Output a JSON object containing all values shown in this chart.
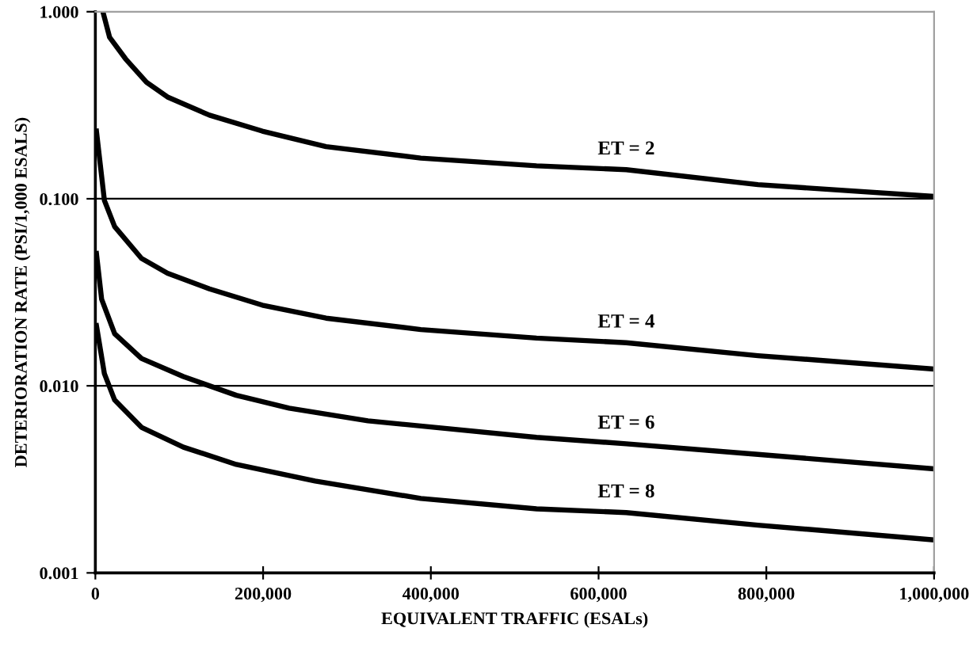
{
  "chart_data": {
    "type": "line",
    "xlabel": "EQUIVALENT TRAFFIC (ESALs)",
    "ylabel": "DETERIORATION RATE (PSI/1,000 ESALS)",
    "log": "y",
    "grid": "y",
    "legend": false,
    "marker": "none",
    "line_style": "solid",
    "xlim": [
      0,
      1000000
    ],
    "xticks": [
      {
        "value": 0,
        "label": "0"
      },
      {
        "value": 200000,
        "label": "200,000"
      },
      {
        "value": 400000,
        "label": "400,000"
      },
      {
        "value": 600000,
        "label": "600,000"
      },
      {
        "value": 800000,
        "label": "800,000"
      },
      {
        "value": 1000000,
        "label": "1,000,000"
      }
    ],
    "ylim": [
      0.001,
      1
    ],
    "yticks": [
      {
        "value": 0.001,
        "label": "0.001"
      },
      {
        "value": 0.01,
        "label": "0.010"
      },
      {
        "value": 0.1,
        "label": "0.100"
      },
      {
        "value": 1,
        "label": "1.000"
      }
    ],
    "series": [
      {
        "name": "ET = 2",
        "color": "#000000",
        "x": [
          9000,
          17000,
          36000,
          61000,
          86000,
          136000,
          199000,
          275000,
          388000,
          526000,
          633000,
          790000,
          1000000
        ],
        "values": [
          1.0,
          0.73,
          0.56,
          0.42,
          0.35,
          0.28,
          0.23,
          0.19,
          0.165,
          0.15,
          0.143,
          0.119,
          0.103
        ]
      },
      {
        "name": "ET = 4",
        "color": "#000000",
        "x": [
          1300,
          10800,
          23000,
          55000,
          86000,
          136000,
          199000,
          275000,
          388000,
          526000,
          633000,
          790000,
          1000000
        ],
        "values": [
          0.23,
          0.098,
          0.071,
          0.048,
          0.04,
          0.033,
          0.027,
          0.023,
          0.02,
          0.018,
          0.017,
          0.0145,
          0.0123
        ]
      },
      {
        "name": "ET = 6",
        "color": "#000000",
        "x": [
          1300,
          7500,
          23000,
          55000,
          105000,
          168000,
          231000,
          325000,
          526000,
          633000,
          790000,
          1000000
        ],
        "values": [
          0.051,
          0.029,
          0.019,
          0.014,
          0.0112,
          0.0089,
          0.0076,
          0.0065,
          0.0053,
          0.0049,
          0.0043,
          0.0036
        ]
      },
      {
        "name": "ET = 8",
        "color": "#000000",
        "x": [
          1300,
          10800,
          23000,
          55000,
          105000,
          168000,
          262000,
          388000,
          526000,
          633000,
          790000,
          1000000
        ],
        "values": [
          0.021,
          0.0116,
          0.0084,
          0.006,
          0.0047,
          0.0038,
          0.0031,
          0.0025,
          0.0022,
          0.0021,
          0.0018,
          0.0015
        ]
      }
    ]
  }
}
